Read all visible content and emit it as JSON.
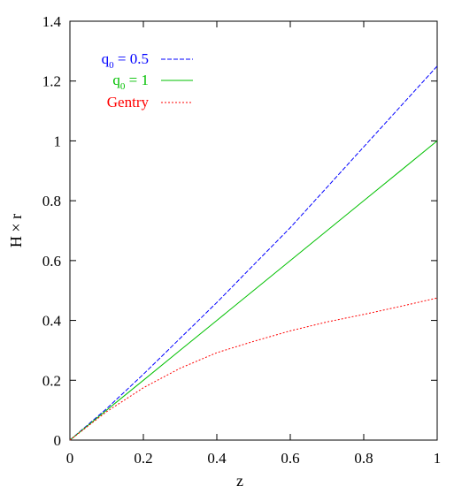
{
  "chart_data": {
    "type": "line",
    "title": "",
    "xlabel": "z",
    "ylabel": "H × r",
    "xlim": [
      0,
      1
    ],
    "ylim": [
      0,
      1.4
    ],
    "xticks": [
      "0",
      "0.2",
      "0.4",
      "0.6",
      "0.8",
      "1"
    ],
    "yticks": [
      "0",
      "0.2",
      "0.4",
      "0.6",
      "0.8",
      "1",
      "1.2",
      "1.4"
    ],
    "grid": false,
    "legend_position": "top-left",
    "series": [
      {
        "name_base": "q",
        "name_sub": "0",
        "name_rest": "= 0.5",
        "color": "#0000ff",
        "dash": "dashed",
        "x": [
          0,
          0.1,
          0.2,
          0.3,
          0.4,
          0.5,
          0.6,
          0.7,
          0.8,
          0.9,
          1.0
        ],
        "y": [
          0,
          0.105,
          0.22,
          0.34,
          0.46,
          0.585,
          0.71,
          0.845,
          0.98,
          1.115,
          1.25
        ]
      },
      {
        "name_base": "q",
        "name_sub": "0",
        "name_rest": "= 1",
        "color": "#00c000",
        "dash": "solid",
        "x": [
          0,
          0.1,
          0.2,
          0.3,
          0.4,
          0.5,
          0.6,
          0.7,
          0.8,
          0.9,
          1.0
        ],
        "y": [
          0,
          0.1,
          0.2,
          0.3,
          0.4,
          0.5,
          0.6,
          0.7,
          0.8,
          0.9,
          1.0
        ]
      },
      {
        "name_base": "Gentry",
        "name_sub": "",
        "name_rest": "",
        "color": "#ff0000",
        "dash": "dotted",
        "x": [
          0,
          0.1,
          0.2,
          0.3,
          0.4,
          0.5,
          0.6,
          0.7,
          0.8,
          0.9,
          1.0
        ],
        "y": [
          0,
          0.095,
          0.175,
          0.24,
          0.292,
          0.33,
          0.365,
          0.395,
          0.42,
          0.447,
          0.475
        ]
      }
    ]
  }
}
